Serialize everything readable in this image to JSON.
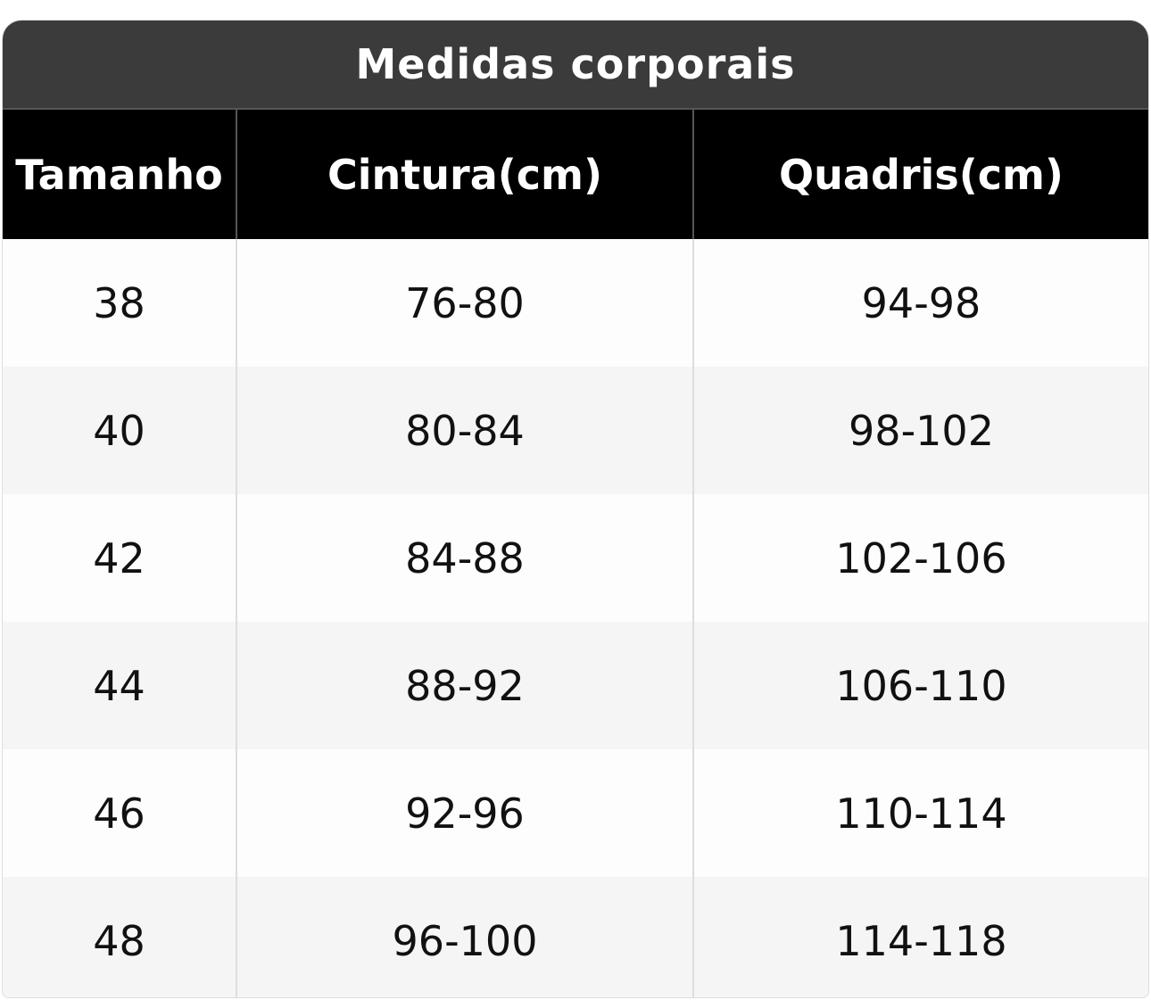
{
  "table": {
    "title": "Medidas corporais",
    "headers": [
      "Tamanho",
      "Cintura(cm)",
      "Quadris(cm)"
    ],
    "rows": [
      [
        "38",
        "76-80",
        "94-98"
      ],
      [
        "40",
        "80-84",
        "98-102"
      ],
      [
        "42",
        "84-88",
        "102-106"
      ],
      [
        "44",
        "88-92",
        "106-110"
      ],
      [
        "46",
        "92-96",
        "110-114"
      ],
      [
        "48",
        "96-100",
        "114-118"
      ]
    ]
  }
}
